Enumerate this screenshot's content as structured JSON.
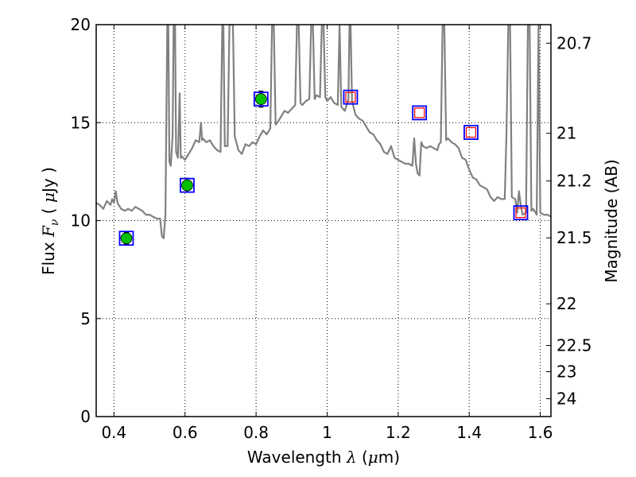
{
  "chart_data": {
    "type": "scatter",
    "xlabel": "Wavelength  λ (μm)",
    "ylabel": "Flux  F_ν  ( μJy )",
    "ylabel_right": "Magnitude (AB)",
    "xlim": [
      0.35,
      1.63
    ],
    "ylim": [
      0,
      20
    ],
    "grid": true,
    "x_ticks": [
      {
        "value": 0.4,
        "label": "0.4"
      },
      {
        "value": 0.6,
        "label": "0.6"
      },
      {
        "value": 0.8,
        "label": "0.8"
      },
      {
        "value": 1.0,
        "label": "1"
      },
      {
        "value": 1.2,
        "label": "1.2"
      },
      {
        "value": 1.4,
        "label": "1.4"
      },
      {
        "value": 1.6,
        "label": "1.6"
      }
    ],
    "y_ticks": [
      {
        "value": 0,
        "label": "0"
      },
      {
        "value": 5,
        "label": "5"
      },
      {
        "value": 10,
        "label": "10"
      },
      {
        "value": 15,
        "label": "15"
      },
      {
        "value": 20,
        "label": "20"
      }
    ],
    "right_ticks": [
      {
        "value": 20.7,
        "label": "20.7"
      },
      {
        "value": 21,
        "label": "21"
      },
      {
        "value": 21.2,
        "label": "21.2"
      },
      {
        "value": 21.5,
        "label": "21.5"
      },
      {
        "value": 22,
        "label": "22"
      },
      {
        "value": 22.5,
        "label": "22.5"
      },
      {
        "value": 23,
        "label": "23"
      },
      {
        "value": 24,
        "label": "24"
      }
    ],
    "observed_points": [
      {
        "x": 0.435,
        "y": 9.1,
        "err": 0.3
      },
      {
        "x": 0.606,
        "y": 11.8,
        "err": 0.35
      },
      {
        "x": 0.814,
        "y": 16.2,
        "err": 0.4
      }
    ],
    "model_squares": [
      {
        "x": 0.435,
        "y": 9.1,
        "inner": false
      },
      {
        "x": 0.606,
        "y": 11.8,
        "inner": false
      },
      {
        "x": 0.814,
        "y": 16.2,
        "inner": false
      },
      {
        "x": 1.066,
        "y": 16.3,
        "inner": true
      },
      {
        "x": 1.26,
        "y": 15.5,
        "inner": true
      },
      {
        "x": 1.405,
        "y": 14.5,
        "inner": true
      },
      {
        "x": 1.545,
        "y": 10.4,
        "inner": true
      }
    ],
    "spectrum": [
      [
        0.35,
        10.9
      ],
      [
        0.36,
        10.8
      ],
      [
        0.37,
        10.6
      ],
      [
        0.38,
        11.0
      ],
      [
        0.39,
        10.8
      ],
      [
        0.395,
        11.1
      ],
      [
        0.4,
        10.9
      ],
      [
        0.405,
        11.5
      ],
      [
        0.41,
        10.9
      ],
      [
        0.42,
        10.6
      ],
      [
        0.43,
        10.5
      ],
      [
        0.44,
        10.6
      ],
      [
        0.45,
        10.5
      ],
      [
        0.46,
        10.7
      ],
      [
        0.47,
        10.6
      ],
      [
        0.48,
        10.5
      ],
      [
        0.49,
        10.3
      ],
      [
        0.5,
        10.3
      ],
      [
        0.51,
        10.2
      ],
      [
        0.52,
        10.1
      ],
      [
        0.53,
        10.1
      ],
      [
        0.535,
        9.2
      ],
      [
        0.54,
        9.1
      ],
      [
        0.545,
        10.3
      ],
      [
        0.55,
        20.0
      ],
      [
        0.553,
        20.0
      ],
      [
        0.556,
        13.0
      ],
      [
        0.56,
        12.8
      ],
      [
        0.565,
        14.3
      ],
      [
        0.568,
        20.0
      ],
      [
        0.572,
        20.0
      ],
      [
        0.575,
        13.5
      ],
      [
        0.58,
        13.2
      ],
      [
        0.585,
        16.5
      ],
      [
        0.588,
        13.2
      ],
      [
        0.59,
        13.3
      ],
      [
        0.6,
        13.1
      ],
      [
        0.61,
        13.4
      ],
      [
        0.62,
        13.7
      ],
      [
        0.63,
        14.1
      ],
      [
        0.64,
        14.0
      ],
      [
        0.645,
        15.0
      ],
      [
        0.648,
        14.1
      ],
      [
        0.65,
        14.2
      ],
      [
        0.66,
        14.0
      ],
      [
        0.67,
        14.1
      ],
      [
        0.68,
        13.8
      ],
      [
        0.69,
        13.6
      ],
      [
        0.7,
        13.5
      ],
      [
        0.705,
        20.0
      ],
      [
        0.708,
        20.0
      ],
      [
        0.712,
        13.8
      ],
      [
        0.72,
        13.8
      ],
      [
        0.725,
        20.0
      ],
      [
        0.735,
        20.0
      ],
      [
        0.74,
        14.3
      ],
      [
        0.75,
        13.6
      ],
      [
        0.76,
        13.4
      ],
      [
        0.77,
        13.9
      ],
      [
        0.78,
        13.8
      ],
      [
        0.79,
        14.0
      ],
      [
        0.8,
        13.9
      ],
      [
        0.81,
        14.3
      ],
      [
        0.82,
        14.6
      ],
      [
        0.83,
        14.4
      ],
      [
        0.84,
        14.7
      ],
      [
        0.845,
        20.0
      ],
      [
        0.85,
        20.0
      ],
      [
        0.855,
        14.9
      ],
      [
        0.86,
        15.0
      ],
      [
        0.87,
        15.3
      ],
      [
        0.88,
        15.6
      ],
      [
        0.89,
        15.5
      ],
      [
        0.9,
        15.7
      ],
      [
        0.91,
        15.9
      ],
      [
        0.915,
        20.0
      ],
      [
        0.92,
        20.0
      ],
      [
        0.925,
        16.0
      ],
      [
        0.93,
        15.9
      ],
      [
        0.94,
        16.1
      ],
      [
        0.95,
        16.2
      ],
      [
        0.955,
        20.0
      ],
      [
        0.96,
        20.0
      ],
      [
        0.965,
        16.2
      ],
      [
        0.97,
        16.4
      ],
      [
        0.98,
        16.3
      ],
      [
        0.985,
        20.0
      ],
      [
        0.99,
        20.0
      ],
      [
        0.995,
        16.3
      ],
      [
        1.0,
        16.1
      ],
      [
        1.01,
        16.3
      ],
      [
        1.02,
        16.0
      ],
      [
        1.03,
        15.9
      ],
      [
        1.035,
        20.0
      ],
      [
        1.04,
        15.8
      ],
      [
        1.05,
        15.6
      ],
      [
        1.06,
        16.2
      ],
      [
        1.063,
        20.0
      ],
      [
        1.066,
        20.0
      ],
      [
        1.07,
        16.1
      ],
      [
        1.08,
        15.4
      ],
      [
        1.09,
        15.2
      ],
      [
        1.1,
        15.1
      ],
      [
        1.11,
        14.8
      ],
      [
        1.12,
        14.5
      ],
      [
        1.13,
        14.4
      ],
      [
        1.14,
        14.1
      ],
      [
        1.15,
        13.9
      ],
      [
        1.16,
        13.5
      ],
      [
        1.17,
        13.4
      ],
      [
        1.18,
        13.8
      ],
      [
        1.19,
        13.2
      ],
      [
        1.2,
        13.1
      ],
      [
        1.21,
        13.0
      ],
      [
        1.22,
        12.9
      ],
      [
        1.23,
        12.9
      ],
      [
        1.24,
        12.8
      ],
      [
        1.245,
        14.2
      ],
      [
        1.25,
        12.9
      ],
      [
        1.255,
        12.4
      ],
      [
        1.26,
        12.3
      ],
      [
        1.265,
        14.0
      ],
      [
        1.27,
        13.8
      ],
      [
        1.28,
        13.7
      ],
      [
        1.29,
        13.8
      ],
      [
        1.3,
        13.7
      ],
      [
        1.31,
        13.6
      ],
      [
        1.315,
        13.9
      ],
      [
        1.32,
        14.0
      ],
      [
        1.325,
        20.0
      ],
      [
        1.33,
        20.0
      ],
      [
        1.335,
        14.1
      ],
      [
        1.34,
        14.2
      ],
      [
        1.35,
        14.0
      ],
      [
        1.36,
        13.9
      ],
      [
        1.37,
        13.7
      ],
      [
        1.38,
        13.2
      ],
      [
        1.39,
        13.1
      ],
      [
        1.4,
        12.6
      ],
      [
        1.41,
        12.2
      ],
      [
        1.42,
        12.1
      ],
      [
        1.43,
        11.8
      ],
      [
        1.44,
        11.7
      ],
      [
        1.45,
        11.6
      ],
      [
        1.46,
        11.2
      ],
      [
        1.47,
        11.0
      ],
      [
        1.48,
        11.2
      ],
      [
        1.49,
        11.1
      ],
      [
        1.5,
        11.1
      ],
      [
        1.505,
        14.5
      ],
      [
        1.51,
        20.0
      ],
      [
        1.515,
        20.0
      ],
      [
        1.52,
        11.2
      ],
      [
        1.53,
        11.1
      ],
      [
        1.535,
        10.4
      ],
      [
        1.54,
        11.5
      ],
      [
        1.545,
        10.8
      ],
      [
        1.55,
        10.3
      ],
      [
        1.56,
        10.4
      ],
      [
        1.565,
        20.0
      ],
      [
        1.57,
        20.0
      ],
      [
        1.575,
        10.5
      ],
      [
        1.58,
        10.6
      ],
      [
        1.59,
        10.3
      ],
      [
        1.595,
        20.0
      ],
      [
        1.6,
        10.4
      ],
      [
        1.61,
        10.3
      ],
      [
        1.62,
        10.3
      ],
      [
        1.63,
        10.2
      ]
    ],
    "colors": {
      "spectrum": "#808080",
      "observed": "#00c000",
      "square_outer": "#0000ff",
      "square_inner": "#ff0000",
      "grid": "#000000"
    }
  }
}
